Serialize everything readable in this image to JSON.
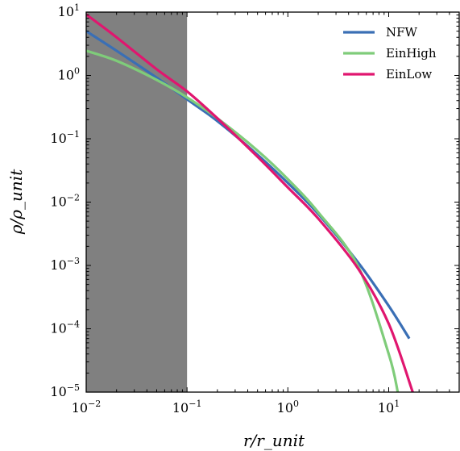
{
  "chart_data": {
    "type": "line",
    "xlabel": "r/r_unit",
    "ylabel": "ρ/ρ_unit",
    "x_scale": "log",
    "y_scale": "log",
    "xlim": [
      0.01,
      50
    ],
    "ylim": [
      1e-05,
      10
    ],
    "x_ticks": [
      {
        "value": 0.01,
        "base": "10",
        "exp": "−2"
      },
      {
        "value": 0.1,
        "base": "10",
        "exp": "−1"
      },
      {
        "value": 1,
        "base": "10",
        "exp": "0"
      },
      {
        "value": 10,
        "base": "10",
        "exp": "1"
      }
    ],
    "y_ticks": [
      {
        "value": 1e-05,
        "base": "10",
        "exp": "−5"
      },
      {
        "value": 0.0001,
        "base": "10",
        "exp": "−4"
      },
      {
        "value": 0.001,
        "base": "10",
        "exp": "−3"
      },
      {
        "value": 0.01,
        "base": "10",
        "exp": "−2"
      },
      {
        "value": 0.1,
        "base": "10",
        "exp": "−1"
      },
      {
        "value": 1,
        "base": "10",
        "exp": "0"
      },
      {
        "value": 10,
        "base": "10",
        "exp": "1"
      }
    ],
    "shaded_region": {
      "x_range": [
        0.01,
        0.1
      ],
      "color": "#808080"
    },
    "grid": false,
    "legend_position": "top-right",
    "series": [
      {
        "name": "NFW",
        "color": "#3a6fb5",
        "x": [
          0.01,
          0.02,
          0.05,
          0.1,
          0.2,
          0.5,
          1,
          2,
          5,
          10,
          16
        ],
        "y": [
          5.0,
          2.45,
          0.92,
          0.42,
          0.19,
          0.056,
          0.02,
          0.0065,
          0.0011,
          0.00023,
          7e-05
        ]
      },
      {
        "name": "EinHigh",
        "color": "#7fcc7a",
        "x": [
          0.01,
          0.02,
          0.05,
          0.1,
          0.2,
          0.5,
          1,
          2,
          5,
          10,
          12.3
        ],
        "y": [
          2.45,
          1.7,
          0.85,
          0.45,
          0.21,
          0.065,
          0.023,
          0.0069,
          0.00095,
          4e-05,
          1e-05
        ]
      },
      {
        "name": "EinLow",
        "color": "#e0166f",
        "x": [
          0.01,
          0.02,
          0.05,
          0.1,
          0.2,
          0.5,
          1,
          2,
          5,
          10,
          17.3
        ],
        "y": [
          9.2,
          4.0,
          1.25,
          0.56,
          0.21,
          0.052,
          0.017,
          0.0055,
          0.00088,
          0.00012,
          1e-05
        ]
      }
    ]
  }
}
